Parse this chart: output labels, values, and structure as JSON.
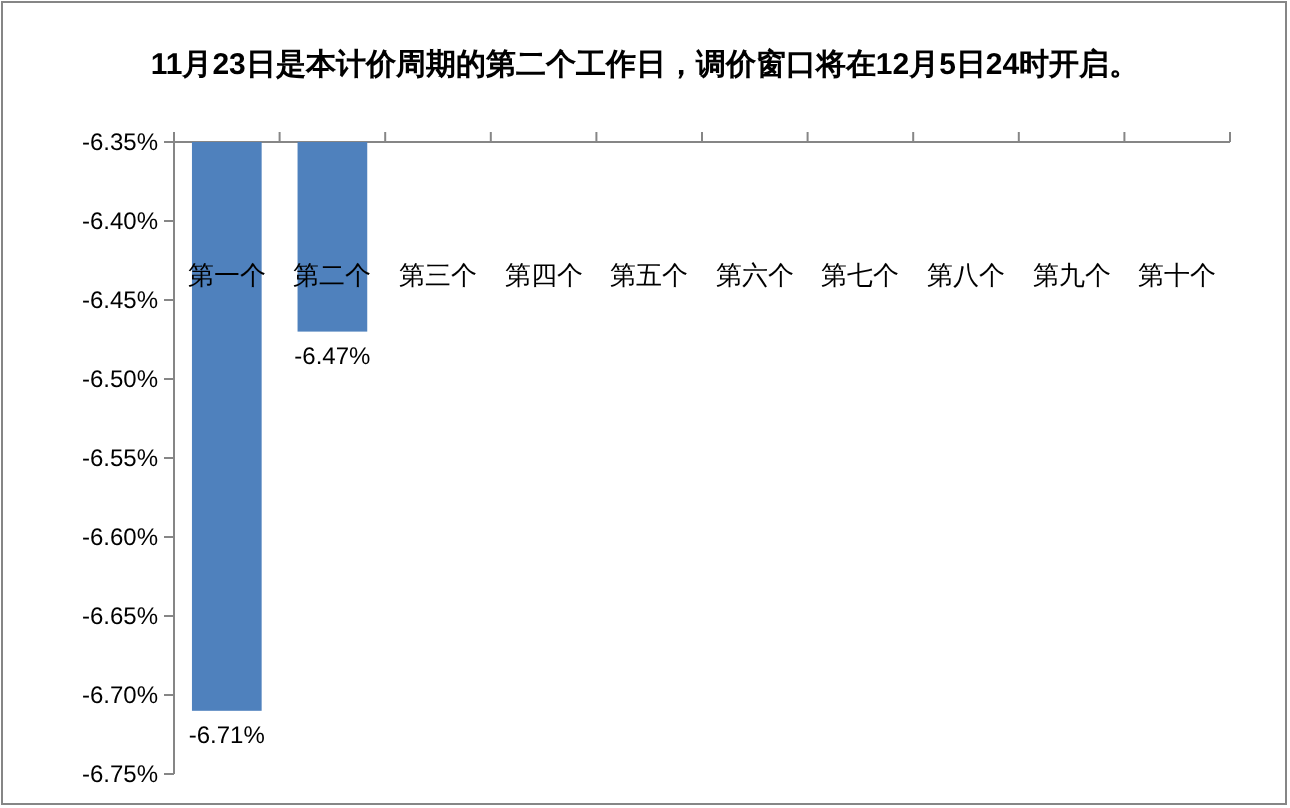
{
  "chart_data": {
    "type": "bar",
    "title": "11月23日是本计价周期的第二个工作日，调价窗口将在12月5日24时开启。",
    "categories": [
      "第一个",
      "第二个",
      "第三个",
      "第四个",
      "第五个",
      "第六个",
      "第七个",
      "第八个",
      "第九个",
      "第十个"
    ],
    "series": [
      {
        "color": "#4f81bd",
        "values": [
          -6.71,
          -6.47,
          null,
          null,
          null,
          null,
          null,
          null,
          null,
          null
        ]
      }
    ],
    "value_labels": [
      "-6.71%",
      "-6.47%",
      null,
      null,
      null,
      null,
      null,
      null,
      null,
      null
    ],
    "ylim": [
      -6.75,
      -6.35
    ],
    "yticks": [
      {
        "value": -6.35,
        "label": "-6.35%"
      },
      {
        "value": -6.4,
        "label": "-6.40%"
      },
      {
        "value": -6.45,
        "label": "-6.45%"
      },
      {
        "value": -6.5,
        "label": "-6.50%"
      },
      {
        "value": -6.55,
        "label": "-6.55%"
      },
      {
        "value": -6.6,
        "label": "-6.60%"
      },
      {
        "value": -6.65,
        "label": "-6.65%"
      },
      {
        "value": -6.7,
        "label": "-6.70%"
      },
      {
        "value": -6.75,
        "label": "-6.75%"
      }
    ],
    "grid": false
  }
}
